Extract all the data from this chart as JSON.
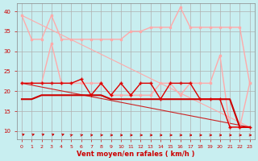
{
  "x": [
    0,
    1,
    2,
    3,
    4,
    5,
    6,
    7,
    8,
    9,
    10,
    11,
    12,
    13,
    14,
    15,
    16,
    17,
    18,
    19,
    20,
    21,
    22,
    23
  ],
  "background_color": "#c8eef0",
  "grid_color": "#b0b0b0",
  "xlabel": "Vent moyen/en rafales ( km/h )",
  "xlabel_color": "#cc0000",
  "tick_color": "#cc0000",
  "ylim": [
    8,
    42
  ],
  "xlim": [
    -0.5,
    23.5
  ],
  "yticks": [
    10,
    15,
    20,
    25,
    30,
    35,
    40
  ],
  "line_rafales_upper": {
    "y": [
      39,
      33,
      33,
      39,
      33,
      33,
      33,
      33,
      33,
      33,
      33,
      35,
      35,
      36,
      36,
      36,
      41,
      36,
      36,
      36,
      36,
      36,
      36,
      22
    ],
    "color": "#ffaaaa",
    "marker": "s",
    "markersize": 2.0,
    "linewidth": 1.0
  },
  "line_rafales_lower": {
    "y": [
      22,
      22,
      22,
      32,
      22,
      22,
      22,
      22,
      22,
      19,
      19,
      19,
      19,
      19,
      22,
      22,
      19,
      22,
      22,
      22,
      29,
      11,
      11,
      22
    ],
    "color": "#ffaaaa",
    "marker": "s",
    "markersize": 2.0,
    "linewidth": 1.0
  },
  "line_vent_oscillating": {
    "y": [
      22,
      22,
      22,
      22,
      22,
      22,
      23,
      19,
      22,
      19,
      22,
      19,
      22,
      22,
      18,
      22,
      22,
      22,
      18,
      18,
      18,
      11,
      11,
      11
    ],
    "color": "#dd0000",
    "marker": "+",
    "markersize": 3.5,
    "markeredgewidth": 1.0,
    "linewidth": 1.0
  },
  "line_vent_flat": {
    "y": [
      18,
      18,
      19,
      19,
      19,
      19,
      19,
      19,
      19,
      18,
      18,
      18,
      18,
      18,
      18,
      18,
      18,
      18,
      18,
      18,
      18,
      18,
      11,
      11
    ],
    "color": "#cc0000",
    "marker": "None",
    "linewidth": 1.5
  },
  "line_slope_dark": {
    "x": [
      0,
      23
    ],
    "y": [
      22,
      11
    ],
    "color": "#cc2222",
    "linewidth": 0.8,
    "linestyle": "-"
  },
  "line_slope_pink": {
    "x": [
      0,
      23
    ],
    "y": [
      39,
      11
    ],
    "color": "#ffaaaa",
    "linewidth": 0.8,
    "linestyle": "-"
  },
  "arrows": {
    "angles_deg": [
      45,
      45,
      45,
      45,
      45,
      30,
      20,
      10,
      5,
      355,
      355,
      355,
      355,
      355,
      355,
      355,
      355,
      355,
      355,
      355,
      355,
      355,
      355,
      355
    ],
    "color": "#cc0000",
    "y": 9.0
  }
}
